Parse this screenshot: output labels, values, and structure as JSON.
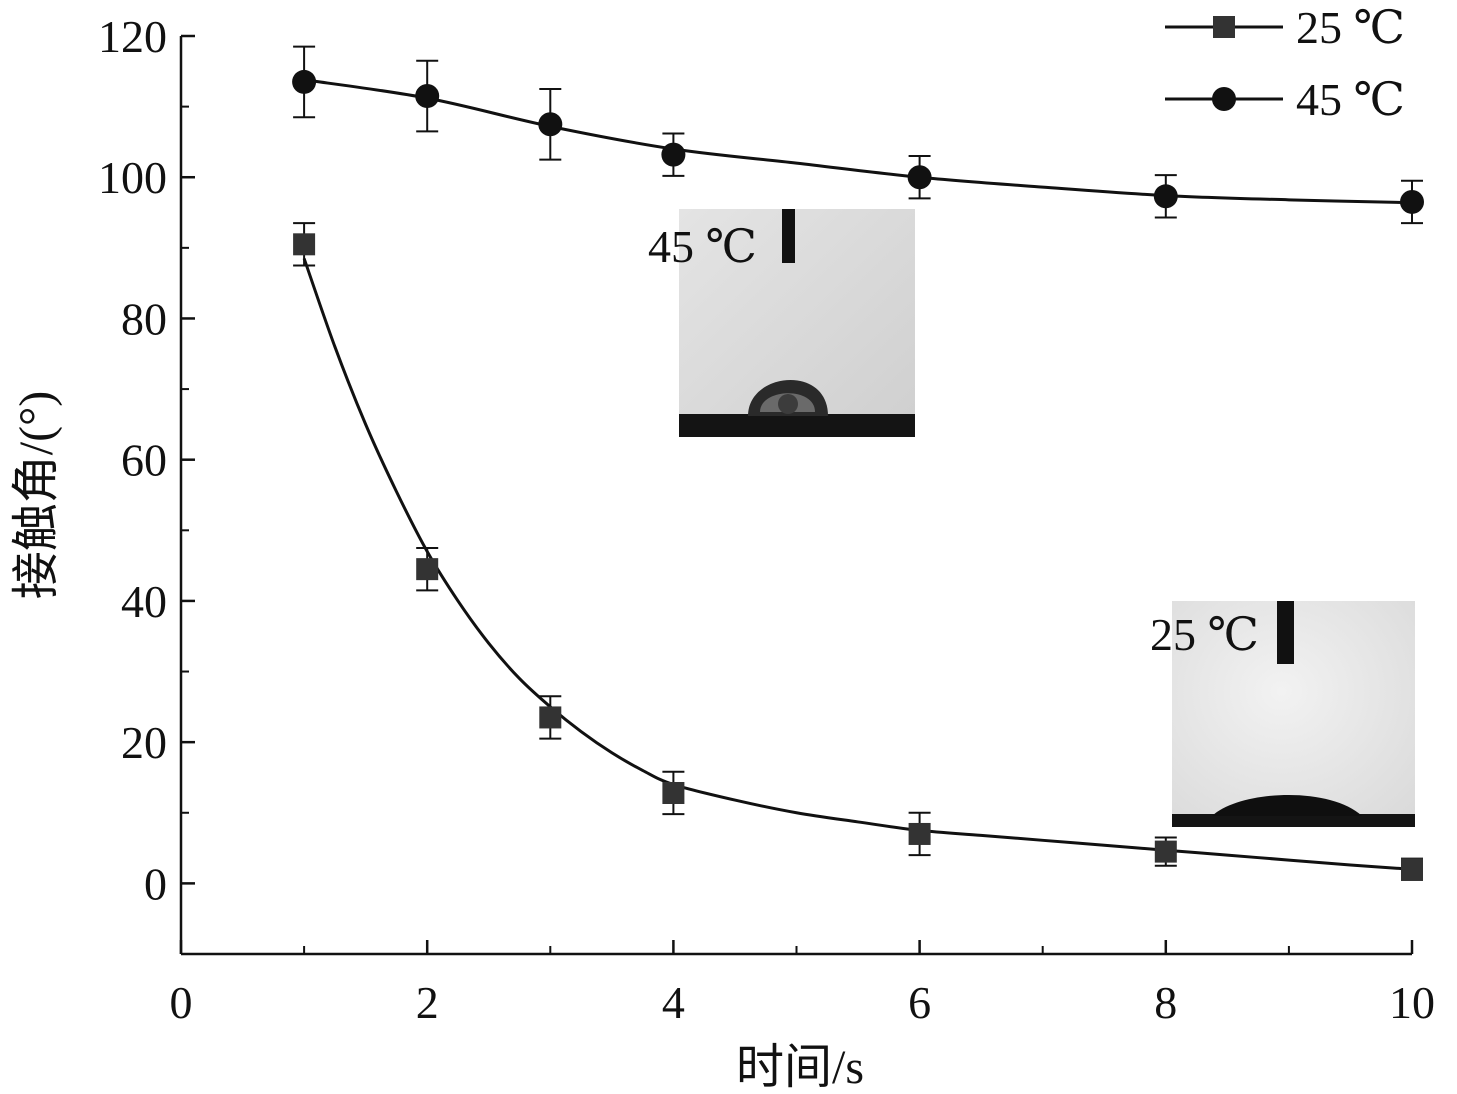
{
  "chart_data": {
    "type": "line",
    "xlabel": "时间/s",
    "ylabel": "接触角/(°)",
    "xlim": [
      0,
      10
    ],
    "ylim": [
      -10,
      120
    ],
    "x_ticks": [
      0,
      2,
      4,
      6,
      8,
      10
    ],
    "y_ticks": [
      0,
      20,
      40,
      60,
      80,
      100,
      120
    ],
    "grid": false,
    "legend_position": "top-right",
    "series": [
      {
        "name": "25 ℃",
        "marker": "square",
        "color": "#333333",
        "x": [
          1,
          2,
          3,
          4,
          6,
          8,
          10
        ],
        "y": [
          90.5,
          44.5,
          23.5,
          12.8,
          7.0,
          4.5,
          2.0
        ],
        "error": [
          3.0,
          3.0,
          3.0,
          3.0,
          3.0,
          2.0,
          1.5
        ],
        "fit": {
          "x": [
            1,
            1.25,
            1.5,
            1.75,
            2,
            2.25,
            2.5,
            2.75,
            3,
            3.25,
            3.5,
            3.75,
            4,
            4.5,
            5,
            5.5,
            6,
            6.5,
            7,
            7.5,
            8,
            8.5,
            9,
            9.5,
            10
          ],
          "y": [
            88.5,
            76.0,
            65.0,
            55.5,
            47.0,
            40.0,
            34.0,
            29.0,
            25.0,
            21.5,
            18.5,
            16.0,
            14.0,
            11.8,
            10.0,
            8.7,
            7.5,
            6.8,
            6.1,
            5.4,
            4.7,
            4.0,
            3.3,
            2.6,
            2.0
          ]
        }
      },
      {
        "name": "45 ℃",
        "marker": "circle",
        "color": "#111111",
        "x": [
          1,
          2,
          3,
          4,
          6,
          8,
          10
        ],
        "y": [
          113.5,
          111.5,
          107.5,
          103.2,
          100.0,
          97.3,
          96.5
        ],
        "error": [
          5.0,
          5.0,
          5.0,
          3.0,
          3.0,
          3.0,
          3.0
        ],
        "fit": {
          "x": [
            1,
            2,
            3,
            4,
            5,
            6,
            7,
            8,
            9,
            10
          ],
          "y": [
            113.8,
            111.2,
            107.2,
            104.0,
            102.0,
            100.0,
            98.6,
            97.4,
            96.8,
            96.4
          ]
        }
      }
    ],
    "insets": [
      {
        "label": "45 ℃",
        "drop": "high-contact-angle"
      },
      {
        "label": "25 ℃",
        "drop": "low-contact-angle"
      }
    ]
  }
}
